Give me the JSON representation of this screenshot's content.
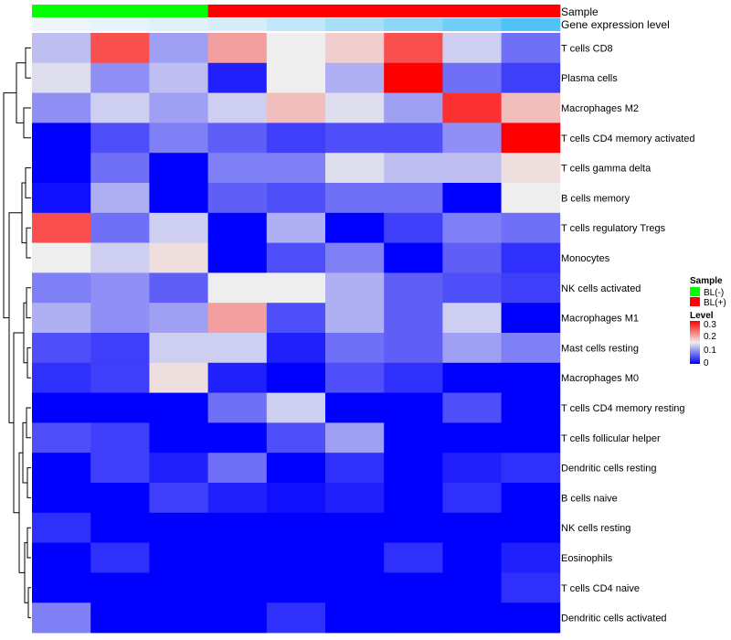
{
  "chart_data": {
    "type": "heatmap",
    "annotations": {
      "sample_title": "Sample",
      "expression_title": "Gene expression level",
      "sample": [
        "BL(-)",
        "BL(-)",
        "BL(-)",
        "BL(+)",
        "BL(+)",
        "BL(+)",
        "BL(+)",
        "BL(+)",
        "BL(+)"
      ],
      "expression": [
        0.02,
        0.05,
        0.08,
        0.12,
        0.2,
        0.3,
        0.4,
        0.52,
        0.65
      ]
    },
    "rows": [
      "T cells CD8",
      "Plasma cells",
      "Macrophages M2",
      "T cells CD4 memory activated",
      "T cells gamma delta",
      "B cells memory",
      "T cells regulatory  Tregs",
      "Monocytes",
      "NK cells activated",
      "Macrophages M1",
      "Mast cells resting",
      "Macrophages M0",
      "T cells CD4 memory resting",
      "T cells follicular helper",
      "Dendritic cells resting",
      "B cells naive",
      "NK cells resting",
      "Eosinophils",
      "T cells CD4 naive",
      "Dendritic cells activated"
    ],
    "values": [
      [
        0.12,
        0.25,
        0.1,
        0.2,
        0.15,
        0.17,
        0.25,
        0.13,
        0.07
      ],
      [
        0.14,
        0.09,
        0.12,
        0.02,
        0.15,
        0.11,
        0.3,
        0.07,
        0.04
      ],
      [
        0.09,
        0.13,
        0.1,
        0.13,
        0.18,
        0.14,
        0.1,
        0.27,
        0.18
      ],
      [
        0.0,
        0.05,
        0.08,
        0.06,
        0.04,
        0.05,
        0.05,
        0.09,
        0.3
      ],
      [
        0.0,
        0.07,
        0.0,
        0.08,
        0.08,
        0.14,
        0.12,
        0.12,
        0.16
      ],
      [
        0.01,
        0.11,
        0.0,
        0.06,
        0.05,
        0.07,
        0.07,
        0.0,
        0.15
      ],
      [
        0.25,
        0.07,
        0.13,
        0.0,
        0.11,
        0.0,
        0.04,
        0.08,
        0.07
      ],
      [
        0.15,
        0.13,
        0.16,
        0.0,
        0.05,
        0.08,
        0.0,
        0.06,
        0.03
      ],
      [
        0.08,
        0.09,
        0.06,
        0.15,
        0.15,
        0.11,
        0.06,
        0.05,
        0.04
      ],
      [
        0.11,
        0.09,
        0.1,
        0.2,
        0.05,
        0.11,
        0.06,
        0.13,
        0.0
      ],
      [
        0.05,
        0.04,
        0.13,
        0.13,
        0.02,
        0.07,
        0.06,
        0.1,
        0.08
      ],
      [
        0.03,
        0.04,
        0.16,
        0.02,
        0.0,
        0.05,
        0.03,
        0.0,
        0.0
      ],
      [
        0.0,
        0.0,
        0.0,
        0.07,
        0.13,
        0.0,
        0.0,
        0.05,
        0.0
      ],
      [
        0.05,
        0.04,
        0.0,
        0.0,
        0.05,
        0.1,
        0.0,
        0.0,
        0.0
      ],
      [
        0.0,
        0.04,
        0.02,
        0.07,
        0.0,
        0.03,
        0.0,
        0.02,
        0.03
      ],
      [
        0.0,
        0.0,
        0.04,
        0.02,
        0.01,
        0.02,
        0.0,
        0.03,
        0.0
      ],
      [
        0.03,
        0.0,
        0.0,
        0.0,
        0.0,
        0.0,
        0.0,
        0.0,
        0.0
      ],
      [
        0.0,
        0.03,
        0.0,
        0.0,
        0.0,
        0.0,
        0.03,
        0.0,
        0.02
      ],
      [
        0.0,
        0.0,
        0.0,
        0.0,
        0.0,
        0.0,
        0.0,
        0.0,
        0.03
      ],
      [
        0.08,
        0.0,
        0.0,
        0.0,
        0.03,
        0.0,
        0.0,
        0.0,
        0.0
      ]
    ],
    "color_scale": {
      "min": 0,
      "mid": 0.15,
      "max": 0.3,
      "low": "#0000ff",
      "mid_color": "#eeeeee",
      "high": "#ff0000"
    },
    "legend": {
      "sample_title": "Sample",
      "sample_items": [
        {
          "label": "BL(-)",
          "color": "#00ff00"
        },
        {
          "label": "BL(+)",
          "color": "#ff0000"
        }
      ],
      "level_title": "Level",
      "level_ticks": [
        "0.3",
        "0.2",
        "0.1",
        "0"
      ]
    },
    "annotation_colors": {
      "BL(-)": "#00ff00",
      "BL(+)": "#ff0000",
      "expression_low": "#eef6fb",
      "expression_high": "#4fc3f7"
    },
    "row_dendrogram": true
  }
}
